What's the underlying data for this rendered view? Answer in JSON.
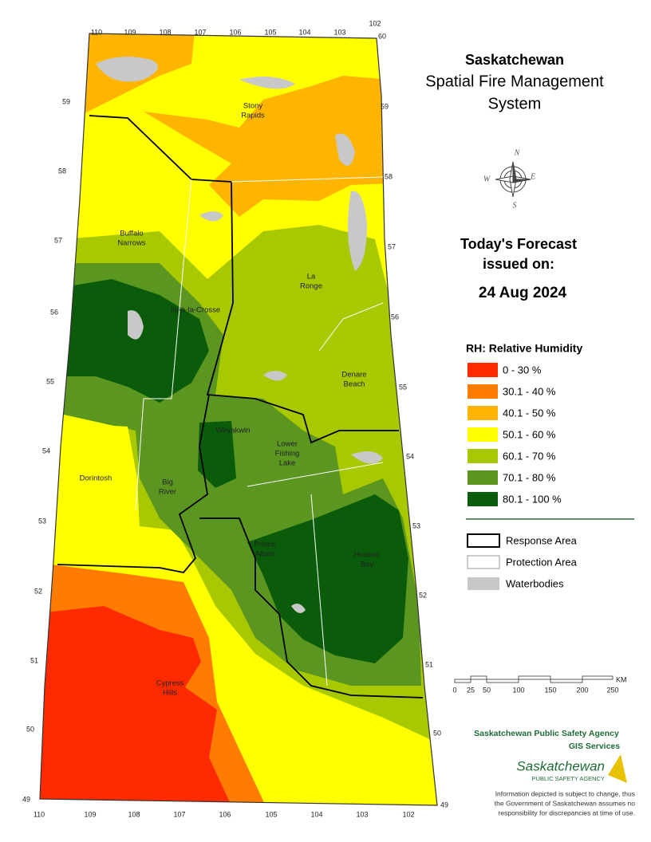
{
  "title": {
    "lines": [
      "Saskatchewan",
      "Spatial Fire Management",
      "System"
    ]
  },
  "forecast": {
    "heading_lines": [
      "Today's Forecast",
      "issued on:"
    ],
    "date": "24 Aug 2024"
  },
  "legend": {
    "title": "RH: Relative Humidity",
    "classes": [
      {
        "label": "0 - 30 %",
        "color": "#ff2a00"
      },
      {
        "label": "30.1 - 40 %",
        "color": "#ff7c00"
      },
      {
        "label": "40.1 - 50 %",
        "color": "#ffb400"
      },
      {
        "label": "50.1 - 60 %",
        "color": "#ffff00"
      },
      {
        "label": "60.1 - 70 %",
        "color": "#a8c800"
      },
      {
        "label": "70.1 - 80 %",
        "color": "#5a9620"
      },
      {
        "label": "80.1 - 100 %",
        "color": "#0a5c0a"
      }
    ],
    "features": [
      {
        "label": "Response Area"
      },
      {
        "label": "Protection Area"
      },
      {
        "label": "Waterbodies",
        "color": "#c8c8c8"
      }
    ]
  },
  "scale_bar": {
    "ticks": [
      "0",
      "25",
      "50",
      "100",
      "150",
      "200",
      "250"
    ],
    "unit": "KM"
  },
  "map": {
    "places": [
      {
        "lines": [
          "Stony",
          "Rapids"
        ]
      },
      {
        "lines": [
          "Buffalo",
          "Narrows"
        ]
      },
      {
        "lines": [
          "La",
          "Ronge"
        ]
      },
      {
        "lines": [
          "Île-à-la-Crosse"
        ]
      },
      {
        "lines": [
          "Denare",
          "Beach"
        ]
      },
      {
        "lines": [
          "Weyakwin"
        ]
      },
      {
        "lines": [
          "Lower",
          "Fishing",
          "Lake"
        ]
      },
      {
        "lines": [
          "Dorintosh"
        ]
      },
      {
        "lines": [
          "Big",
          "River"
        ]
      },
      {
        "lines": [
          "Prince",
          "Albert"
        ]
      },
      {
        "lines": [
          "Hudson",
          "Bay"
        ]
      },
      {
        "lines": [
          "Cypress",
          "Hills"
        ]
      }
    ],
    "latitudes": {
      "left": [
        "59",
        "58",
        "57",
        "56",
        "55",
        "54",
        "53",
        "52",
        "51",
        "50",
        "49"
      ],
      "right": [
        "60",
        "59",
        "58",
        "57",
        "56",
        "55",
        "54",
        "53",
        "52",
        "51",
        "50",
        "49"
      ]
    },
    "longitudes": {
      "top": [
        "110",
        "109",
        "108",
        "107",
        "106",
        "105",
        "104",
        "103",
        "102"
      ],
      "bottom": [
        "110",
        "109",
        "108",
        "107",
        "106",
        "105",
        "104",
        "103",
        "102"
      ]
    },
    "compass": [
      "N",
      "E",
      "S",
      "W"
    ]
  },
  "credits": {
    "agency": "Saskatchewan Public Safety Agency",
    "unit": "GIS  Services",
    "logo_name": "Saskatchewan",
    "logo_sub": "PUBLIC SAFETY AGENCY",
    "disclaimer": [
      "Information depicted is subject to change, thus",
      "the Government of Saskatchewan assumes no",
      "responsibility for discrepancies at time of use."
    ]
  }
}
